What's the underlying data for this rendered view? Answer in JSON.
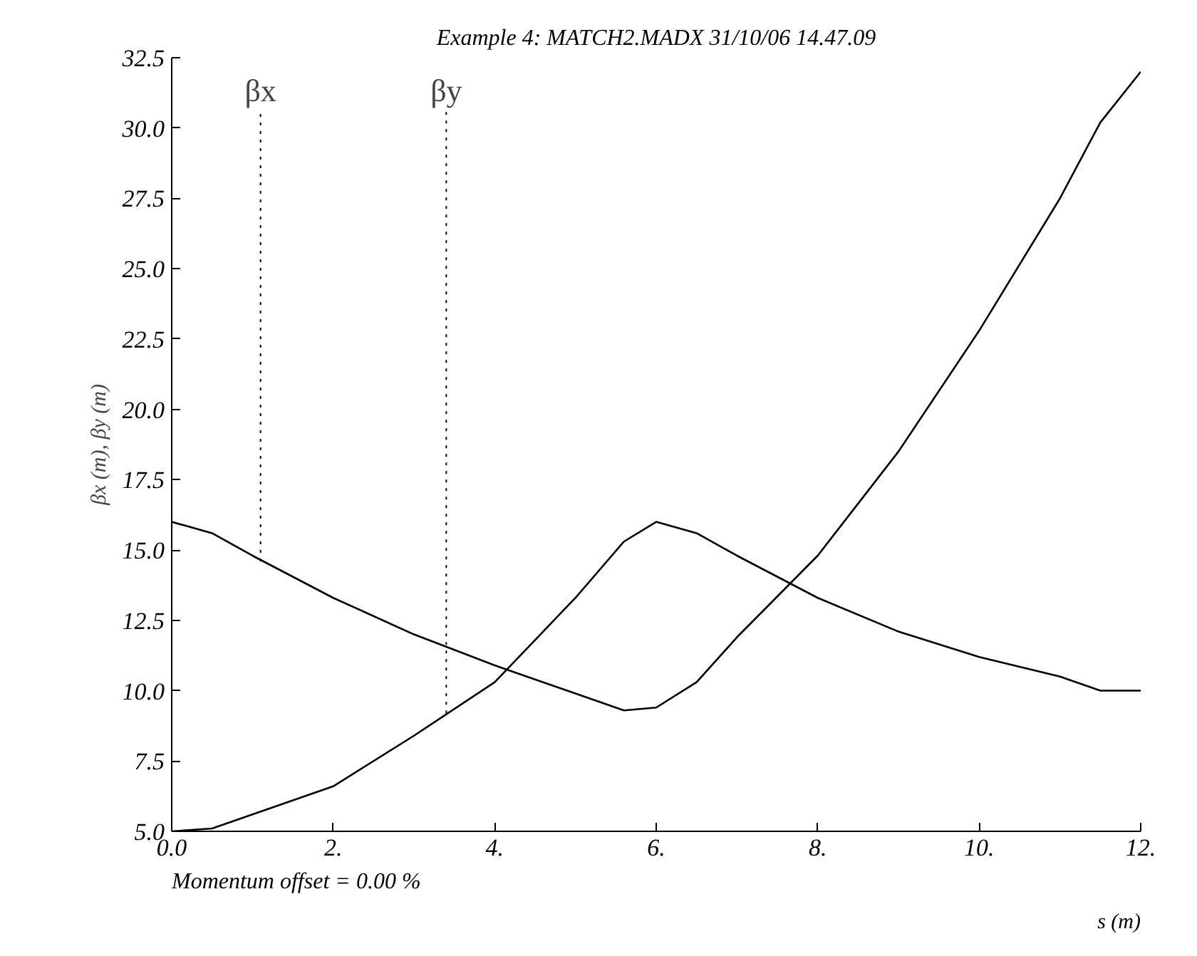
{
  "chart_data": {
    "type": "line",
    "title": "Example 4: MATCH2.MADX 31/10/06 14.47.09",
    "xlabel": "s (m)",
    "ylabel": "βx (m), βy (m)",
    "x": [
      0,
      0.5,
      1,
      2,
      3,
      4,
      5,
      5.6,
      6,
      6.5,
      7,
      8,
      9,
      10,
      11,
      11.5,
      12
    ],
    "series": [
      {
        "color": "#000000",
        "values": [
          16.0,
          15.6,
          14.8,
          13.3,
          12.0,
          10.9,
          9.9,
          9.3,
          9.4,
          10.3,
          11.9,
          14.8,
          18.5,
          22.8,
          27.5,
          30.2,
          32.0
        ]
      },
      {
        "color": "#000000",
        "values": [
          5.0,
          5.1,
          5.6,
          6.6,
          8.4,
          10.3,
          13.3,
          15.3,
          16.0,
          15.6,
          14.8,
          13.3,
          12.1,
          11.2,
          10.5,
          10.0,
          10.0
        ]
      }
    ],
    "annotations": [
      {
        "text": "βx",
        "x": 1.1,
        "y": 14.6
      },
      {
        "text": "βy",
        "x": 3.4,
        "y": 9.2
      },
      "Momentum offset =    0.00 %"
    ],
    "xlim": [
      0,
      12
    ],
    "ylim": [
      5,
      32.5
    ],
    "xticks": [
      {
        "value": 0,
        "label": "0.0"
      },
      {
        "value": 2,
        "label": "2."
      },
      {
        "value": 4,
        "label": "4."
      },
      {
        "value": 6,
        "label": "6."
      },
      {
        "value": 8,
        "label": "8."
      },
      {
        "value": 10,
        "label": "10."
      },
      {
        "value": 12,
        "label": "12."
      }
    ],
    "yticks": [
      {
        "value": 5,
        "label": "5.0"
      },
      {
        "value": 7.5,
        "label": "7.5"
      },
      {
        "value": 10,
        "label": "10.0"
      },
      {
        "value": 12.5,
        "label": "12.5"
      },
      {
        "value": 15,
        "label": "15.0"
      },
      {
        "value": 17.5,
        "label": "17.5"
      },
      {
        "value": 20,
        "label": "20.0"
      },
      {
        "value": 22.5,
        "label": "22.5"
      },
      {
        "value": 25,
        "label": "25.0"
      },
      {
        "value": 27.5,
        "label": "27.5"
      },
      {
        "value": 30,
        "label": "30.0"
      },
      {
        "value": 32.5,
        "label": "32.5"
      }
    ],
    "grid": false,
    "line_style": "solid",
    "marker": "none"
  }
}
